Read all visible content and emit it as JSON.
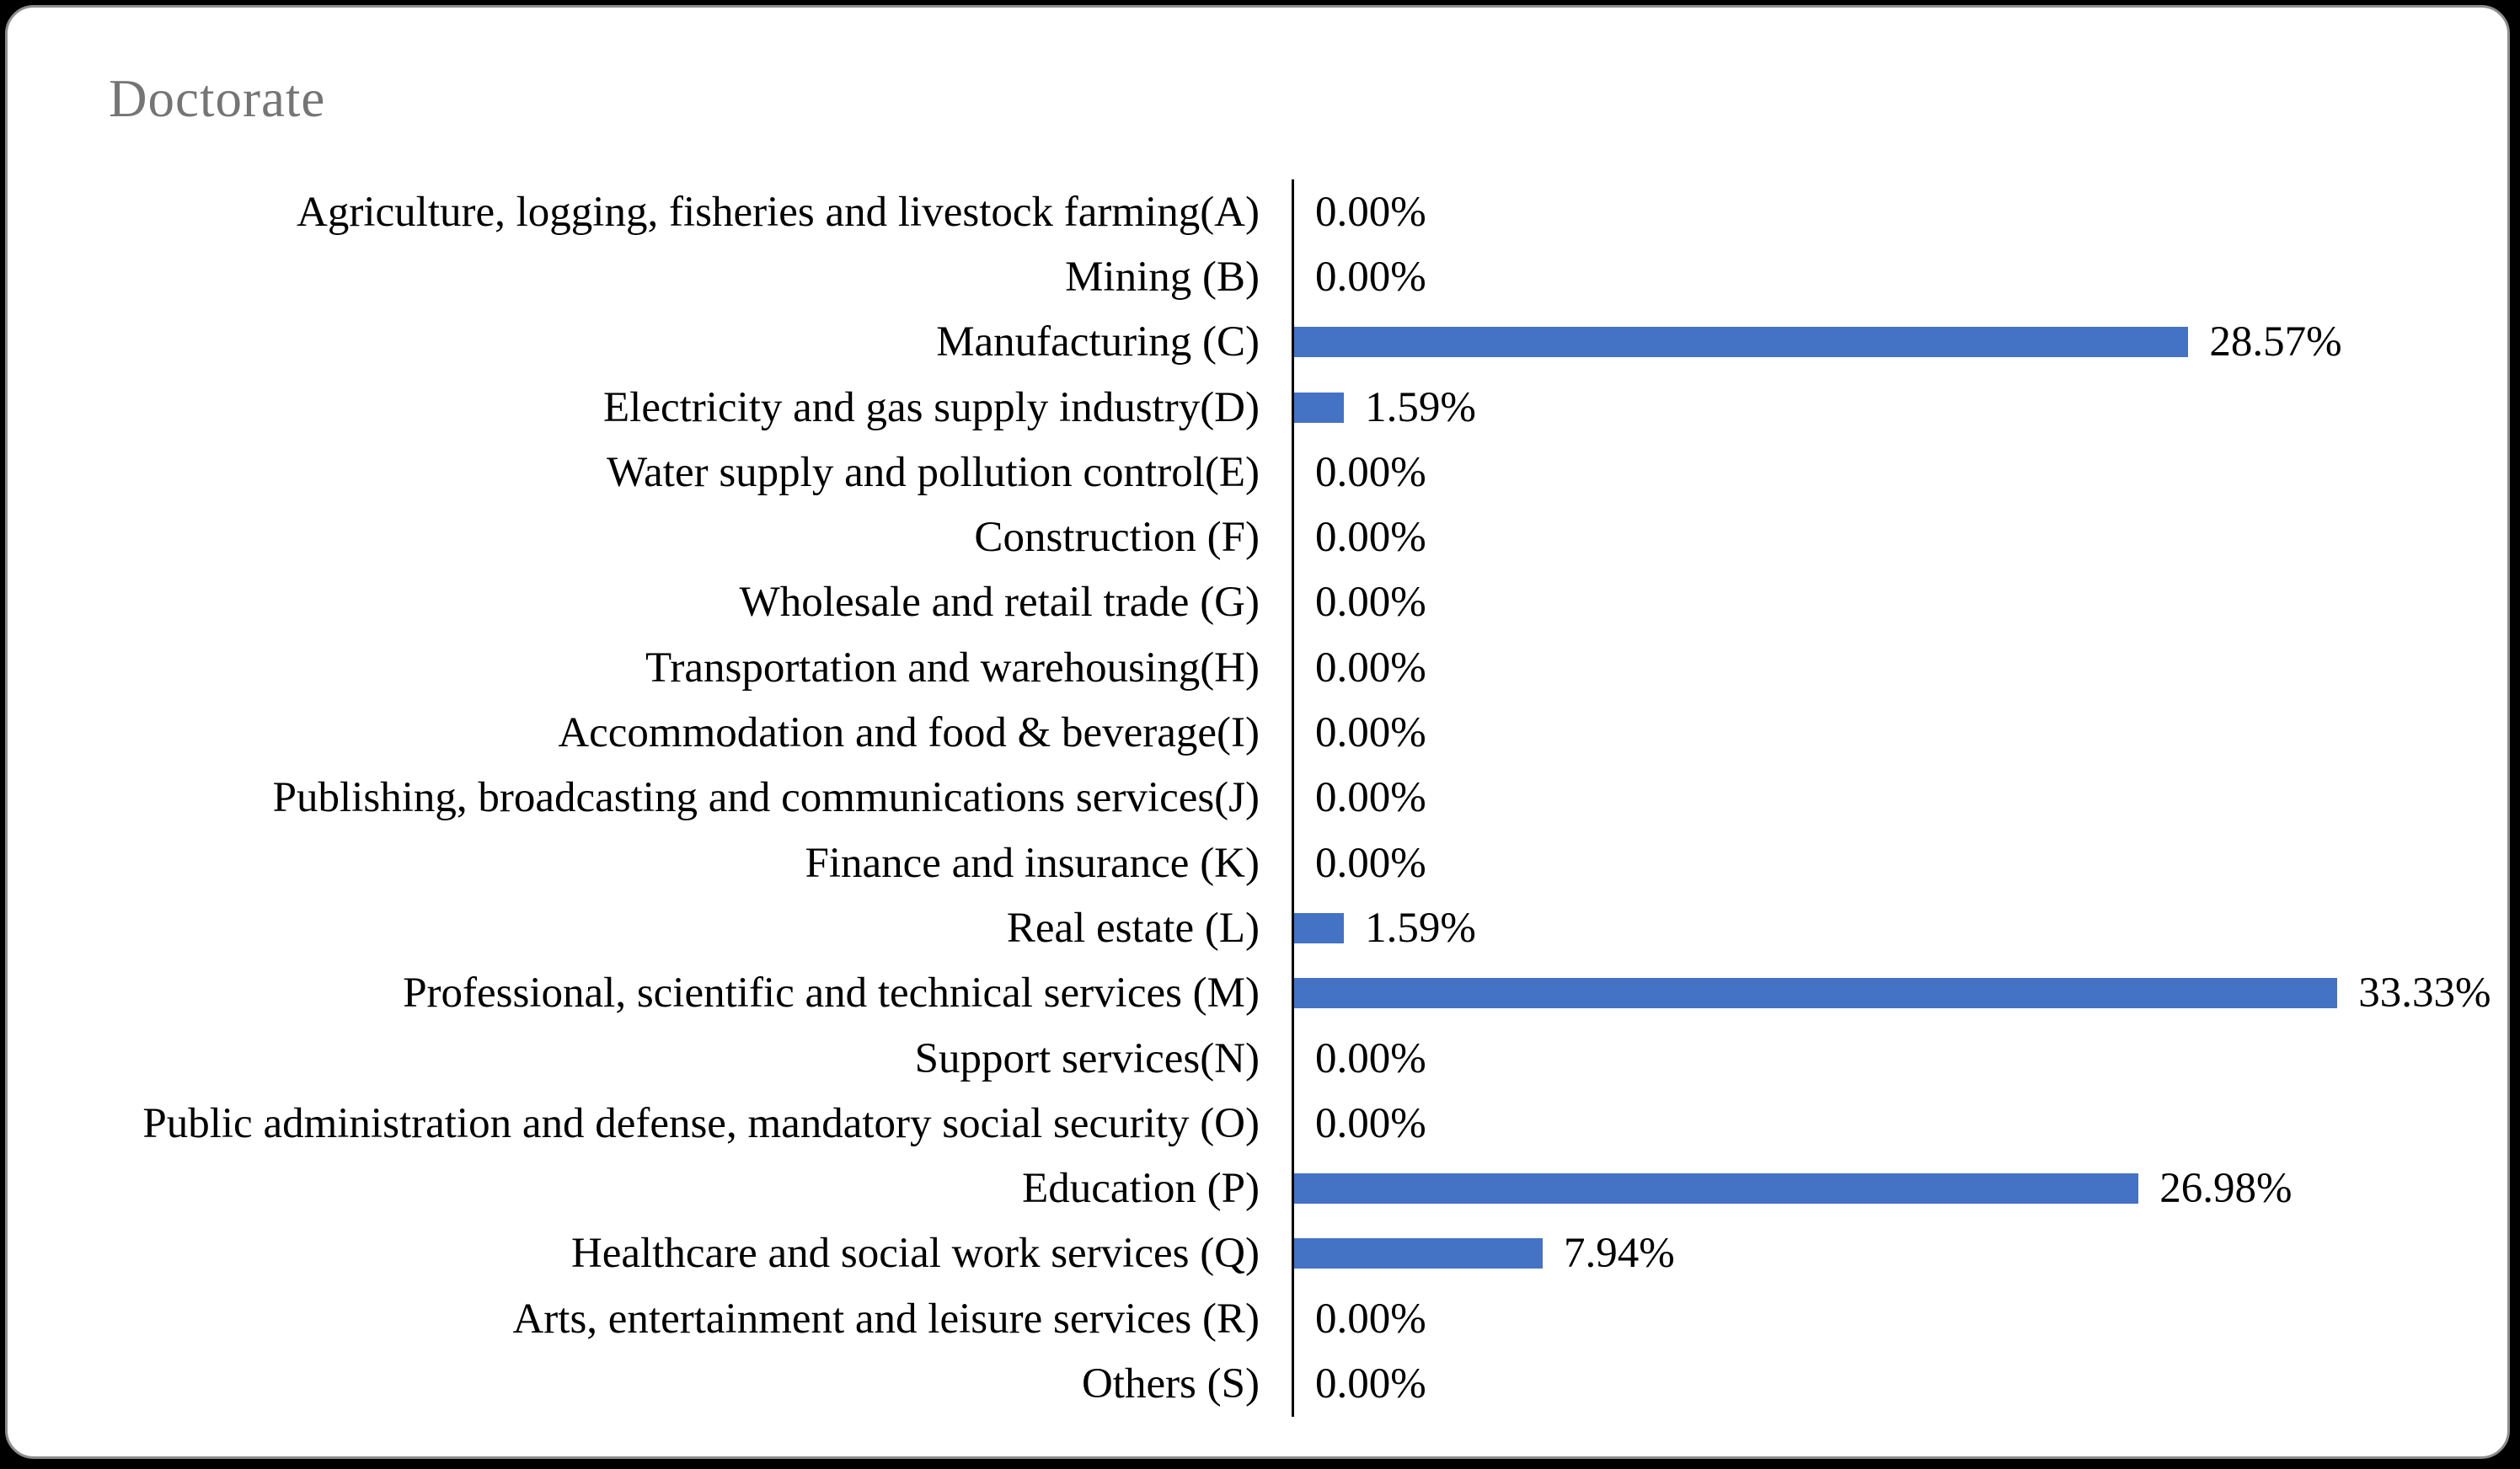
{
  "chart_data": {
    "type": "bar",
    "orientation": "horizontal",
    "title": "Doctorate",
    "categories": [
      "Agriculture, logging, fisheries and livestock farming(A)",
      "Mining (B)",
      "Manufacturing (C)",
      "Electricity and gas supply industry(D)",
      "Water supply and pollution control(E)",
      "Construction (F)",
      "Wholesale and retail trade (G)",
      "Transportation and warehousing(H)",
      "Accommodation and food & beverage(I)",
      "Publishing, broadcasting and communications services(J)",
      "Finance and insurance (K)",
      "Real estate (L)",
      "Professional, scientific and technical services (M)",
      "Support services(N)",
      "Public administration and defense, mandatory social security (O)",
      "Education (P)",
      "Healthcare and social work services (Q)",
      "Arts, entertainment and leisure services (R)",
      "Others (S)"
    ],
    "values": [
      0,
      0,
      28.57,
      1.59,
      0,
      0,
      0,
      0,
      0,
      0,
      0,
      1.59,
      33.33,
      0,
      0,
      26.98,
      7.94,
      0,
      0
    ],
    "value_labels": [
      "0.00%",
      "0.00%",
      "28.57%",
      "1.59%",
      "0.00%",
      "0.00%",
      "0.00%",
      "0.00%",
      "0.00%",
      "0.00%",
      "0.00%",
      "1.59%",
      "33.33%",
      "0.00%",
      "0.00%",
      "26.98%",
      "7.94%",
      "0.00%",
      "0.00%"
    ],
    "xlabel": "",
    "ylabel": "",
    "xlim": [
      0,
      35
    ],
    "grid": false,
    "legend": "none",
    "data_label_position": "outside-end",
    "bar_color": "#4472C4",
    "title_color": "#757575",
    "axis_line_color": "#000000"
  }
}
